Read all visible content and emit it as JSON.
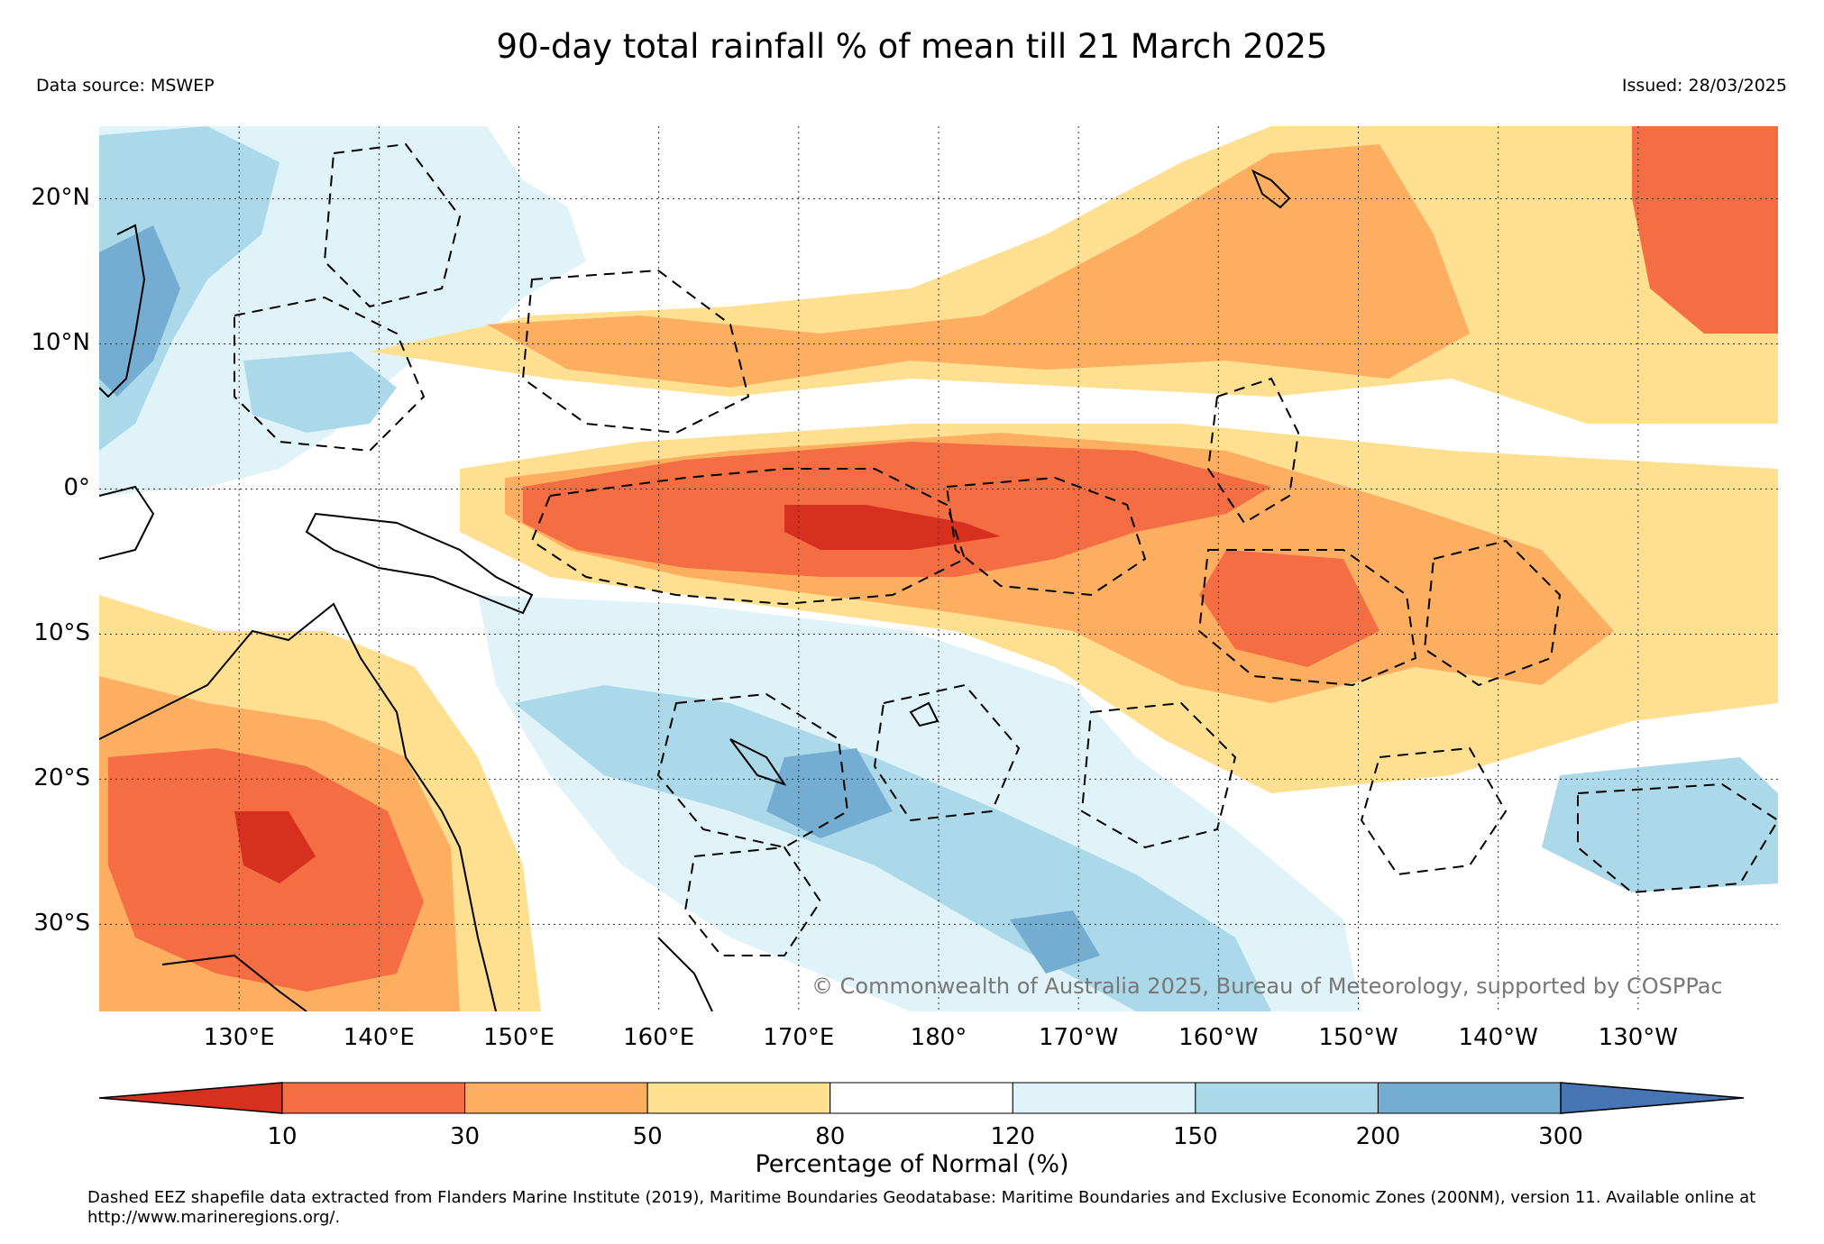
{
  "title": "90-day total rainfall % of mean till 21 March 2025",
  "data_source": "Data source: MSWEP",
  "issued": "Issued: 28/03/2025",
  "copyright": "© Commonwealth of Australia 2025, Bureau of Meteorology, supported by COSPPac",
  "map": {
    "lon_range": [
      120,
      240
    ],
    "lat_range": [
      -36,
      25
    ],
    "lat_labels": [
      {
        "text": "20°N",
        "lat": 20
      },
      {
        "text": "10°N",
        "lat": 10
      },
      {
        "text": "0°",
        "lat": 0
      },
      {
        "text": "10°S",
        "lat": -10
      },
      {
        "text": "20°S",
        "lat": -20
      },
      {
        "text": "30°S",
        "lat": -30
      }
    ],
    "lon_labels": [
      {
        "text": "130°E",
        "lon": 130
      },
      {
        "text": "140°E",
        "lon": 140
      },
      {
        "text": "150°E",
        "lon": 150
      },
      {
        "text": "160°E",
        "lon": 160
      },
      {
        "text": "170°E",
        "lon": 170
      },
      {
        "text": "180°",
        "lon": 180
      },
      {
        "text": "170°W",
        "lon": 190
      },
      {
        "text": "160°W",
        "lon": 200
      },
      {
        "text": "150°W",
        "lon": 210
      },
      {
        "text": "140°W",
        "lon": 220
      },
      {
        "text": "130°W",
        "lon": 230
      }
    ],
    "gridlines": "dotted",
    "eez_boundaries": "dashed"
  },
  "colorbar": {
    "ticks": [
      "10",
      "30",
      "50",
      "80",
      "120",
      "150",
      "200",
      "300"
    ],
    "colors": [
      "#d7301f",
      "#f46d43",
      "#fdae61",
      "#fee090",
      "#ffffff",
      "#e0f3f8",
      "#abd9e9",
      "#74add1",
      "#4575b4"
    ],
    "label": "Percentage of Normal (%)",
    "extend": "both"
  },
  "footnote": "Dashed EEZ shapefile data extracted from Flanders Marine Institute (2019), Maritime Boundaries Geodatabase: Maritime Boundaries and Exclusive Economic Zones (200NM), version 11. Available online at http://www.marineregions.org/."
}
